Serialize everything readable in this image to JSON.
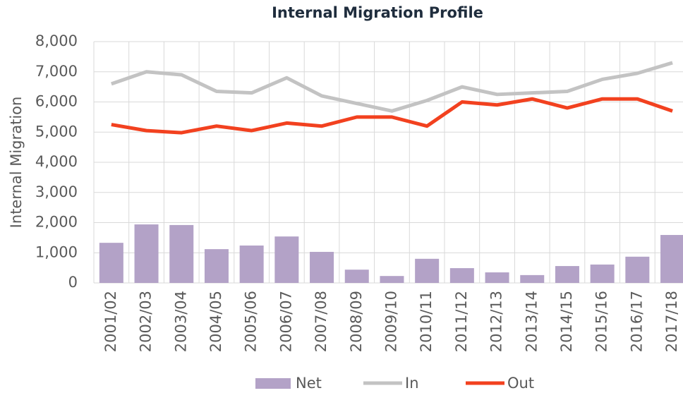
{
  "chart_data": {
    "type": "bar_line",
    "title": "Internal Migration Profile",
    "y_label": "Internal Migration",
    "categories": [
      "2001/02",
      "2002/03",
      "2003/04",
      "2004/05",
      "2005/06",
      "2006/07",
      "2007/08",
      "2008/09",
      "2009/10",
      "2010/11",
      "2011/12",
      "2012/13",
      "2013/14",
      "2014/15",
      "2015/16",
      "2016/17",
      "2017/18"
    ],
    "series": [
      {
        "name": "Net",
        "type": "bar",
        "color": "#b3a2c7",
        "values": [
          1330,
          1940,
          1920,
          1120,
          1240,
          1540,
          1030,
          440,
          230,
          800,
          490,
          350,
          260,
          560,
          610,
          870,
          1590
        ]
      },
      {
        "name": "In",
        "type": "line",
        "color": "#c3c3c3",
        "values": [
          6600,
          7000,
          6900,
          6350,
          6300,
          6800,
          6200,
          5950,
          5700,
          6050,
          6500,
          6250,
          6300,
          6350,
          6750,
          6950,
          7300
        ]
      },
      {
        "name": "Out",
        "type": "line",
        "color": "#f2411f",
        "values": [
          5250,
          5050,
          4980,
          5200,
          5050,
          5300,
          5200,
          5500,
          5500,
          5200,
          6000,
          5900,
          6100,
          5800,
          6100,
          6100,
          5700
        ]
      }
    ],
    "ylim": [
      0,
      8000
    ],
    "yticks": [
      0,
      {
        "value": 1000,
        "label": "1,000"
      },
      {
        "value": 2000,
        "label": "2,000"
      },
      {
        "value": 3000,
        "label": "3,000"
      },
      {
        "value": 4000,
        "label": "4,000"
      },
      {
        "value": 5000,
        "label": "5,000"
      },
      {
        "value": 6000,
        "label": "6,000"
      },
      {
        "value": 7000,
        "label": "7,000"
      },
      {
        "value": 8000,
        "label": "8,000"
      }
    ],
    "grid": true,
    "legend": "bottom"
  }
}
